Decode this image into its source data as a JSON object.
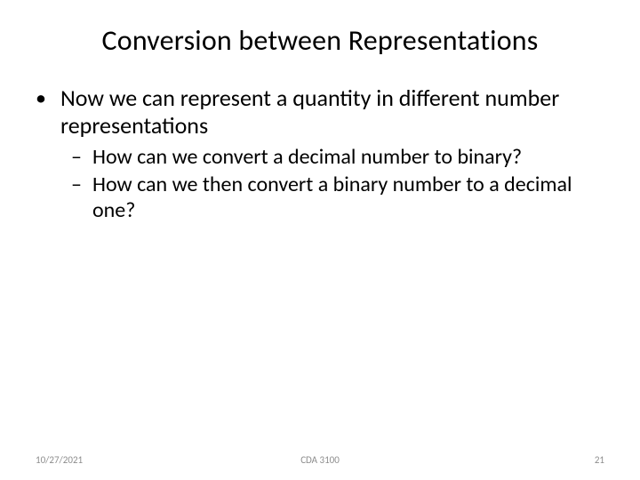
{
  "slide": {
    "title": "Conversion between Representations",
    "bullets": {
      "l1": {
        "text": "Now we can represent a quantity in different number representations"
      },
      "l2a": {
        "text": "How can we convert a decimal number to binary?"
      },
      "l2b": {
        "text": "How can we then convert a binary number to a decimal one?"
      }
    },
    "markers": {
      "dot": "•",
      "dash": "–"
    },
    "footer": {
      "date": "10/27/2021",
      "center": "CDA 3100",
      "page": "21"
    }
  },
  "style": {
    "background": "#ffffff",
    "text_color": "#000000",
    "footer_color": "#8d8d8d",
    "title_fontsize": 32,
    "l1_fontsize": 26,
    "l2_fontsize": 24,
    "footer_fontsize": 11
  }
}
